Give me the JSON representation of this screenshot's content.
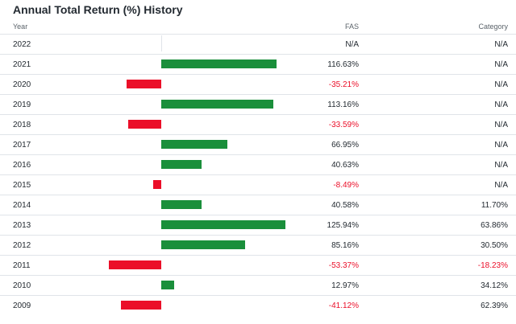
{
  "title": "Annual Total Return (%) History",
  "headers": {
    "year": "Year",
    "fund": "FAS",
    "category": "Category"
  },
  "colors": {
    "positive": "#1a8f3b",
    "negative": "#eb0f29",
    "text": "#232a31",
    "grid": "#e0e4e9"
  },
  "rows": [
    {
      "year": "2022",
      "fund": "N/A",
      "category": "N/A"
    },
    {
      "year": "2021",
      "fund": "116.63%",
      "category": "N/A"
    },
    {
      "year": "2020",
      "fund": "-35.21%",
      "category": "N/A"
    },
    {
      "year": "2019",
      "fund": "113.16%",
      "category": "N/A"
    },
    {
      "year": "2018",
      "fund": "-33.59%",
      "category": "N/A"
    },
    {
      "year": "2017",
      "fund": "66.95%",
      "category": "N/A"
    },
    {
      "year": "2016",
      "fund": "40.63%",
      "category": "N/A"
    },
    {
      "year": "2015",
      "fund": "-8.49%",
      "category": "N/A"
    },
    {
      "year": "2014",
      "fund": "40.58%",
      "category": "11.70%"
    },
    {
      "year": "2013",
      "fund": "125.94%",
      "category": "63.86%"
    },
    {
      "year": "2012",
      "fund": "85.16%",
      "category": "30.50%"
    },
    {
      "year": "2011",
      "fund": "-53.37%",
      "category": "-18.23%"
    },
    {
      "year": "2010",
      "fund": "12.97%",
      "category": "34.12%"
    },
    {
      "year": "2009",
      "fund": "-41.12%",
      "category": "62.39%"
    }
  ],
  "chart_data": {
    "type": "bar",
    "title": "Annual Total Return (%) History",
    "categories": [
      "2022",
      "2021",
      "2020",
      "2019",
      "2018",
      "2017",
      "2016",
      "2015",
      "2014",
      "2013",
      "2012",
      "2011",
      "2010",
      "2009"
    ],
    "series": [
      {
        "name": "FAS",
        "values": [
          null,
          116.63,
          -35.21,
          113.16,
          -33.59,
          66.95,
          40.63,
          -8.49,
          40.58,
          125.94,
          85.16,
          -53.37,
          12.97,
          -41.12
        ]
      }
    ]
  }
}
